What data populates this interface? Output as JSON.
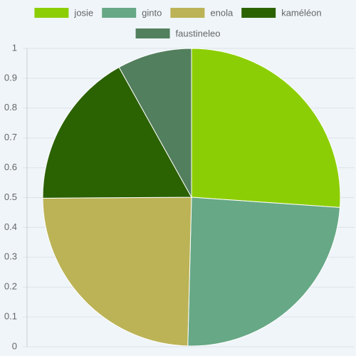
{
  "chart_data": {
    "type": "pie",
    "series": [
      {
        "name": "josie",
        "color": "#8cce05",
        "values": [
          26.1
        ]
      },
      {
        "name": "ginto",
        "color": "#67a886",
        "values": [
          24.3
        ]
      },
      {
        "name": "enola",
        "color": "#bbb356",
        "values": [
          24.5
        ]
      },
      {
        "name": "kaméléon",
        "color": "#2b6202",
        "values": [
          17.0
        ]
      },
      {
        "name": "faustineleo",
        "color": "#527f5d",
        "values": [
          8.1
        ]
      }
    ],
    "ylim": [
      0,
      1
    ],
    "yticks": [
      0,
      0.1,
      0.2,
      0.3,
      0.4,
      0.5,
      0.6,
      0.7,
      0.8,
      0.9,
      1
    ],
    "grid": true
  }
}
